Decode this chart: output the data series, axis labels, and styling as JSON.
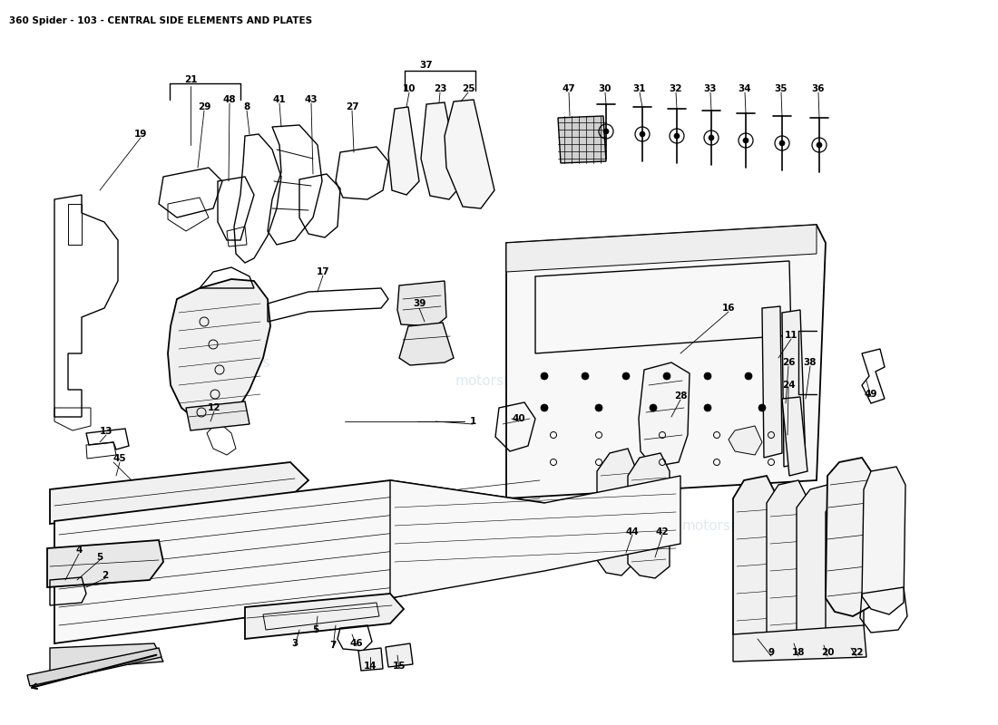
{
  "title": "360 Spider - 103 - CENTRAL SIDE ELEMENTS AND PLATES",
  "title_fontsize": 7.5,
  "background_color": "#ffffff",
  "line_color": "#000000",
  "figsize": [
    11.0,
    8.0
  ],
  "dpi": 100,
  "watermark": "motorspares",
  "wm_color": "#b8cfe0",
  "labels": [
    [
      "19",
      155,
      148
    ],
    [
      "21",
      210,
      88
    ],
    [
      "29",
      225,
      118
    ],
    [
      "48",
      253,
      110
    ],
    [
      "8",
      272,
      118
    ],
    [
      "41",
      308,
      110
    ],
    [
      "43",
      343,
      110
    ],
    [
      "27",
      388,
      118
    ],
    [
      "37",
      470,
      72
    ],
    [
      "10",
      451,
      98
    ],
    [
      "23",
      485,
      98
    ],
    [
      "25",
      516,
      98
    ],
    [
      "47",
      627,
      98
    ],
    [
      "30",
      667,
      98
    ],
    [
      "31",
      705,
      98
    ],
    [
      "32",
      745,
      98
    ],
    [
      "33",
      783,
      98
    ],
    [
      "34",
      821,
      98
    ],
    [
      "35",
      861,
      98
    ],
    [
      "36",
      902,
      98
    ],
    [
      "17",
      356,
      300
    ],
    [
      "16",
      803,
      340
    ],
    [
      "39",
      462,
      335
    ],
    [
      "11",
      872,
      370
    ],
    [
      "26",
      869,
      400
    ],
    [
      "38",
      893,
      400
    ],
    [
      "24",
      869,
      425
    ],
    [
      "28",
      750,
      437
    ],
    [
      "12",
      236,
      450
    ],
    [
      "13",
      117,
      476
    ],
    [
      "1",
      521,
      465
    ],
    [
      "40",
      572,
      462
    ],
    [
      "45",
      132,
      506
    ],
    [
      "4",
      87,
      607
    ],
    [
      "5",
      110,
      615
    ],
    [
      "2",
      116,
      635
    ],
    [
      "44",
      697,
      587
    ],
    [
      "42",
      730,
      587
    ],
    [
      "3",
      325,
      710
    ],
    [
      "5",
      348,
      695
    ],
    [
      "7",
      367,
      712
    ],
    [
      "46",
      393,
      710
    ],
    [
      "14",
      408,
      735
    ],
    [
      "15",
      440,
      735
    ],
    [
      "49",
      960,
      435
    ],
    [
      "9",
      850,
      720
    ],
    [
      "18",
      880,
      720
    ],
    [
      "20",
      912,
      720
    ],
    [
      "22",
      944,
      720
    ]
  ]
}
